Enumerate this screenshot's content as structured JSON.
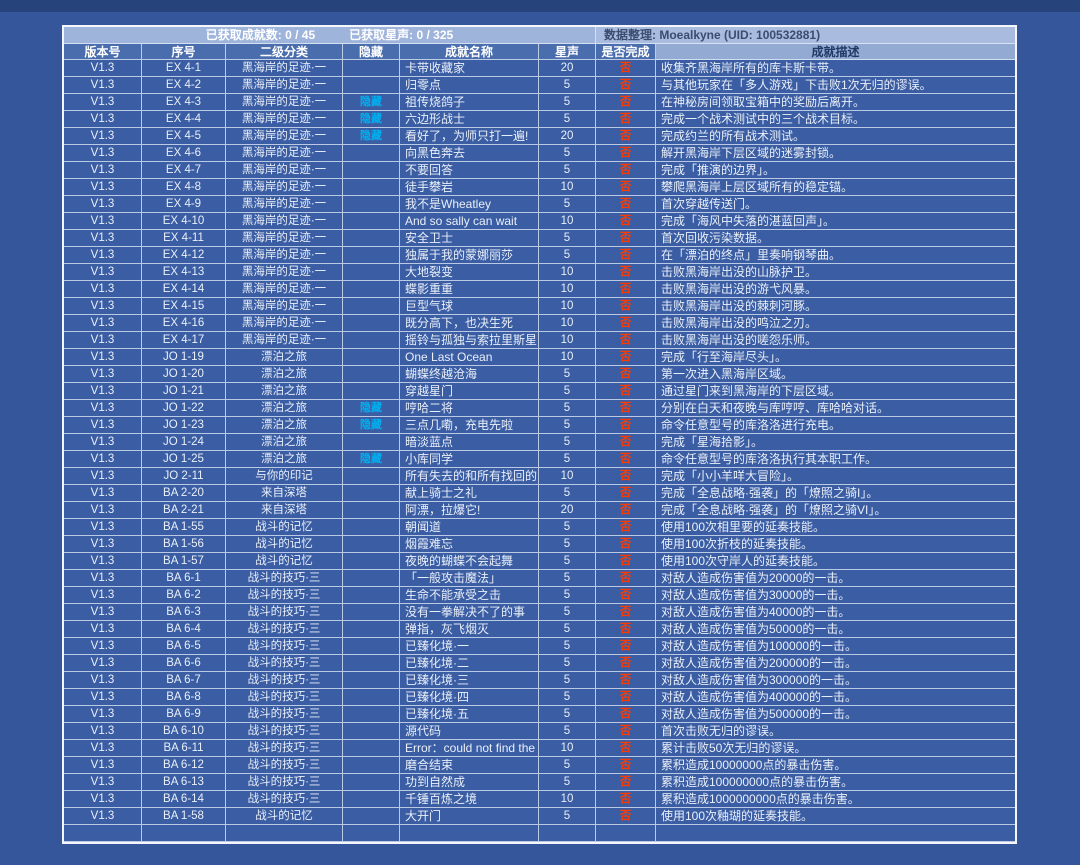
{
  "summary": {
    "achievements": "已获取成就数: 0 / 45",
    "stars": "已获取星声: 0 / 325",
    "credit": "数据整理: Moealkyne (UID: 100532881)"
  },
  "columns": [
    "版本号",
    "序号",
    "二级分类",
    "隐藏",
    "成就名称",
    "星声",
    "是否完成",
    "成就描述"
  ],
  "colors": {
    "page-bg": "#35569B",
    "strip-bg": "#26437C",
    "band-bg": "#9FB4DB",
    "credit-bg": "#A9BCDF",
    "credit-fg": "#3A4C70",
    "head-bg": "#4A6DAD",
    "desc-head-bg": "#93AAD2",
    "desc-head-fg": "#1F3864",
    "cell-bg": "#3A5DA3",
    "hidden-fg": "#00B0F0",
    "no-fg": "#FF3B00"
  },
  "rows": [
    {
      "v": "V1.3",
      "no": "EX 4-1",
      "cat": "黑海岸的足迹·一",
      "hid": "",
      "name": "卡带收藏家",
      "star": "20",
      "done": "否",
      "desc": "收集齐黑海岸所有的库卡斯卡带。"
    },
    {
      "v": "V1.3",
      "no": "EX 4-2",
      "cat": "黑海岸的足迹·一",
      "hid": "",
      "name": "归零点",
      "star": "5",
      "done": "否",
      "desc": "与其他玩家在「多人游戏」下击败1次无归的谬误。"
    },
    {
      "v": "V1.3",
      "no": "EX 4-3",
      "cat": "黑海岸的足迹·一",
      "hid": "隐藏",
      "name": "祖传烧鸽子",
      "star": "5",
      "done": "否",
      "desc": "在神秘房间领取宝箱中的奖励后离开。"
    },
    {
      "v": "V1.3",
      "no": "EX 4-4",
      "cat": "黑海岸的足迹·一",
      "hid": "隐藏",
      "name": "六边形战士",
      "star": "5",
      "done": "否",
      "desc": "完成一个战术测试中的三个战术目标。"
    },
    {
      "v": "V1.3",
      "no": "EX 4-5",
      "cat": "黑海岸的足迹·一",
      "hid": "隐藏",
      "name": "看好了，为师只打一遍!",
      "star": "20",
      "done": "否",
      "desc": "完成约兰的所有战术测试。"
    },
    {
      "v": "V1.3",
      "no": "EX 4-6",
      "cat": "黑海岸的足迹·一",
      "hid": "",
      "name": "向黑色奔去",
      "star": "5",
      "done": "否",
      "desc": "解开黑海岸下层区域的迷雾封锁。"
    },
    {
      "v": "V1.3",
      "no": "EX 4-7",
      "cat": "黑海岸的足迹·一",
      "hid": "",
      "name": "不要回答",
      "star": "5",
      "done": "否",
      "desc": "完成「推演的边界」。"
    },
    {
      "v": "V1.3",
      "no": "EX 4-8",
      "cat": "黑海岸的足迹·一",
      "hid": "",
      "name": "徒手攀岩",
      "star": "10",
      "done": "否",
      "desc": "攀爬黑海岸上层区域所有的稳定锚。"
    },
    {
      "v": "V1.3",
      "no": "EX 4-9",
      "cat": "黑海岸的足迹·一",
      "hid": "",
      "name": "我不是Wheatley",
      "star": "5",
      "done": "否",
      "desc": "首次穿越传送门。"
    },
    {
      "v": "V1.3",
      "no": "EX 4-10",
      "cat": "黑海岸的足迹·一",
      "hid": "",
      "name": "And so sally can wait",
      "star": "10",
      "done": "否",
      "desc": "完成「海风中失落的湛蓝回声」。"
    },
    {
      "v": "V1.3",
      "no": "EX 4-11",
      "cat": "黑海岸的足迹·一",
      "hid": "",
      "name": "安全卫士",
      "star": "5",
      "done": "否",
      "desc": "首次回收污染数据。"
    },
    {
      "v": "V1.3",
      "no": "EX 4-12",
      "cat": "黑海岸的足迹·一",
      "hid": "",
      "name": "独属于我的蒙娜丽莎",
      "star": "5",
      "done": "否",
      "desc": "在「漂泊的终点」里奏响钢琴曲。"
    },
    {
      "v": "V1.3",
      "no": "EX 4-13",
      "cat": "黑海岸的足迹·一",
      "hid": "",
      "name": "大地裂变",
      "star": "10",
      "done": "否",
      "desc": "击败黑海岸出没的山脉护卫。"
    },
    {
      "v": "V1.3",
      "no": "EX 4-14",
      "cat": "黑海岸的足迹·一",
      "hid": "",
      "name": "蝶影重重",
      "star": "10",
      "done": "否",
      "desc": "击败黑海岸出没的游弋风暴。"
    },
    {
      "v": "V1.3",
      "no": "EX 4-15",
      "cat": "黑海岸的足迹·一",
      "hid": "",
      "name": "巨型气球",
      "star": "10",
      "done": "否",
      "desc": "击败黑海岸出没的棘刺河豚。"
    },
    {
      "v": "V1.3",
      "no": "EX 4-16",
      "cat": "黑海岸的足迹·一",
      "hid": "",
      "name": "既分高下，也决生死",
      "star": "10",
      "done": "否",
      "desc": "击败黑海岸出没的鸣泣之刃。"
    },
    {
      "v": "V1.3",
      "no": "EX 4-17",
      "cat": "黑海岸的足迹·一",
      "hid": "",
      "name": "摇铃与孤独与索拉里斯星",
      "star": "10",
      "done": "否",
      "desc": "击败黑海岸出没的嗟怨乐师。"
    },
    {
      "v": "V1.3",
      "no": "JO 1-19",
      "cat": "漂泊之旅",
      "hid": "",
      "name": "One Last Ocean",
      "star": "10",
      "done": "否",
      "desc": "完成「行至海岸尽头」。"
    },
    {
      "v": "V1.3",
      "no": "JO 1-20",
      "cat": "漂泊之旅",
      "hid": "",
      "name": "蝴蝶终越沧海",
      "star": "5",
      "done": "否",
      "desc": "第一次进入黑海岸区域。"
    },
    {
      "v": "V1.3",
      "no": "JO 1-21",
      "cat": "漂泊之旅",
      "hid": "",
      "name": "穿越星门",
      "star": "5",
      "done": "否",
      "desc": "通过星门来到黑海岸的下层区域。"
    },
    {
      "v": "V1.3",
      "no": "JO 1-22",
      "cat": "漂泊之旅",
      "hid": "隐藏",
      "name": "哼哈二将",
      "star": "5",
      "done": "否",
      "desc": "分别在白天和夜晚与库哼哼、库哈哈对话。"
    },
    {
      "v": "V1.3",
      "no": "JO 1-23",
      "cat": "漂泊之旅",
      "hid": "隐藏",
      "name": "三点几嘞，充电先啦",
      "star": "5",
      "done": "否",
      "desc": "命令任意型号的库洛洛进行充电。"
    },
    {
      "v": "V1.3",
      "no": "JO 1-24",
      "cat": "漂泊之旅",
      "hid": "",
      "name": "暗淡蓝点",
      "star": "5",
      "done": "否",
      "desc": "完成「星海拾影」。"
    },
    {
      "v": "V1.3",
      "no": "JO 1-25",
      "cat": "漂泊之旅",
      "hid": "隐藏",
      "name": "小库同学",
      "star": "5",
      "done": "否",
      "desc": "命令任意型号的库洛洛执行其本职工作。"
    },
    {
      "v": "V1.3",
      "no": "JO 2-11",
      "cat": "与你的印记",
      "hid": "",
      "name": "所有失去的和所有找回的",
      "star": "10",
      "done": "否",
      "desc": "完成「小小羊咩大冒险」。"
    },
    {
      "v": "V1.3",
      "no": "BA 2-20",
      "cat": "来自深塔",
      "hid": "",
      "name": "献上骑士之礼",
      "star": "5",
      "done": "否",
      "desc": "完成「全息战略·强袭」的「燎照之骑I」。"
    },
    {
      "v": "V1.3",
      "no": "BA 2-21",
      "cat": "来自深塔",
      "hid": "",
      "name": "阿漂，拉爆它!",
      "star": "20",
      "done": "否",
      "desc": "完成「全息战略·强袭」的「燎照之骑VI」。"
    },
    {
      "v": "V1.3",
      "no": "BA 1-55",
      "cat": "战斗的记忆",
      "hid": "",
      "name": "朝闻道",
      "star": "5",
      "done": "否",
      "desc": "使用100次相里要的延奏技能。"
    },
    {
      "v": "V1.3",
      "no": "BA 1-56",
      "cat": "战斗的记忆",
      "hid": "",
      "name": "烟霞难忘",
      "star": "5",
      "done": "否",
      "desc": "使用100次折枝的延奏技能。"
    },
    {
      "v": "V1.3",
      "no": "BA 1-57",
      "cat": "战斗的记忆",
      "hid": "",
      "name": "夜晚的蝴蝶不会起舞",
      "star": "5",
      "done": "否",
      "desc": "使用100次守岸人的延奏技能。"
    },
    {
      "v": "V1.3",
      "no": "BA 6-1",
      "cat": "战斗的技巧·三",
      "hid": "",
      "name": "「一般攻击魔法」",
      "star": "5",
      "done": "否",
      "desc": "对敌人造成伤害值为20000的一击。"
    },
    {
      "v": "V1.3",
      "no": "BA 6-2",
      "cat": "战斗的技巧·三",
      "hid": "",
      "name": "生命不能承受之击",
      "star": "5",
      "done": "否",
      "desc": "对敌人造成伤害值为30000的一击。"
    },
    {
      "v": "V1.3",
      "no": "BA 6-3",
      "cat": "战斗的技巧·三",
      "hid": "",
      "name": "没有一拳解决不了的事",
      "star": "5",
      "done": "否",
      "desc": "对敌人造成伤害值为40000的一击。"
    },
    {
      "v": "V1.3",
      "no": "BA 6-4",
      "cat": "战斗的技巧·三",
      "hid": "",
      "name": "弹指，灰飞烟灭",
      "star": "5",
      "done": "否",
      "desc": "对敌人造成伤害值为50000的一击。"
    },
    {
      "v": "V1.3",
      "no": "BA 6-5",
      "cat": "战斗的技巧·三",
      "hid": "",
      "name": "已臻化境·一",
      "star": "5",
      "done": "否",
      "desc": "对敌人造成伤害值为100000的一击。"
    },
    {
      "v": "V1.3",
      "no": "BA 6-6",
      "cat": "战斗的技巧·三",
      "hid": "",
      "name": "已臻化境·二",
      "star": "5",
      "done": "否",
      "desc": "对敌人造成伤害值为200000的一击。"
    },
    {
      "v": "V1.3",
      "no": "BA 6-7",
      "cat": "战斗的技巧·三",
      "hid": "",
      "name": "已臻化境·三",
      "star": "5",
      "done": "否",
      "desc": "对敌人造成伤害值为300000的一击。"
    },
    {
      "v": "V1.3",
      "no": "BA 6-8",
      "cat": "战斗的技巧·三",
      "hid": "",
      "name": "已臻化境·四",
      "star": "5",
      "done": "否",
      "desc": "对敌人造成伤害值为400000的一击。"
    },
    {
      "v": "V1.3",
      "no": "BA 6-9",
      "cat": "战斗的技巧·三",
      "hid": "",
      "name": "已臻化境·五",
      "star": "5",
      "done": "否",
      "desc": "对敌人造成伤害值为500000的一击。"
    },
    {
      "v": "V1.3",
      "no": "BA 6-10",
      "cat": "战斗的技巧·三",
      "hid": "",
      "name": "源代码",
      "star": "5",
      "done": "否",
      "desc": "首次击败无归的谬误。"
    },
    {
      "v": "V1.3",
      "no": "BA 6-11",
      "cat": "战斗的技巧·三",
      "hid": "",
      "name": "Error：could not find the",
      "star": "10",
      "done": "否",
      "desc": "累计击败50次无归的谬误。"
    },
    {
      "v": "V1.3",
      "no": "BA 6-12",
      "cat": "战斗的技巧·三",
      "hid": "",
      "name": "磨合结束",
      "star": "5",
      "done": "否",
      "desc": "累积造成10000000点的暴击伤害。"
    },
    {
      "v": "V1.3",
      "no": "BA 6-13",
      "cat": "战斗的技巧·三",
      "hid": "",
      "name": "功到自然成",
      "star": "5",
      "done": "否",
      "desc": "累积造成100000000点的暴击伤害。"
    },
    {
      "v": "V1.3",
      "no": "BA 6-14",
      "cat": "战斗的技巧·三",
      "hid": "",
      "name": "千锤百炼之境",
      "star": "10",
      "done": "否",
      "desc": "累积造成1000000000点的暴击伤害。"
    },
    {
      "v": "V1.3",
      "no": "BA 1-58",
      "cat": "战斗的记忆",
      "hid": "",
      "name": "大开门",
      "star": "5",
      "done": "否",
      "desc": "使用100次釉瑚的延奏技能。"
    }
  ]
}
